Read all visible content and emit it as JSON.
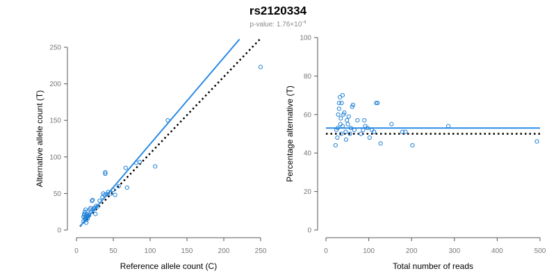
{
  "header": {
    "title": "rs2120334",
    "pvalue_prefix": "p-value: 1.76×10",
    "pvalue_exponent": "-4"
  },
  "colors": {
    "points": "#1f7fd6",
    "fit_line": "#2a8be6",
    "reference_line": "#000000",
    "axis": "#555555",
    "tick_text": "#777777"
  },
  "chart_data": [
    {
      "type": "scatter",
      "title": "",
      "xlabel": "Reference allele count (C)",
      "ylabel": "Alternative allele count (T)",
      "xlim": [
        0,
        262
      ],
      "ylim": [
        0,
        250
      ],
      "xticks": [
        0,
        50,
        100,
        150,
        200,
        250
      ],
      "yticks": [
        0,
        50,
        100,
        150,
        200,
        250
      ],
      "fit_line": {
        "x": [
          5,
          232
        ],
        "y": [
          5,
          261
        ]
      },
      "reference_line": {
        "x": [
          5,
          262
        ],
        "y": [
          5,
          262
        ],
        "style": "dotted"
      },
      "points": [
        [
          10,
          12
        ],
        [
          10,
          18
        ],
        [
          11,
          20
        ],
        [
          11,
          22
        ],
        [
          12,
          15
        ],
        [
          12,
          25
        ],
        [
          13,
          17
        ],
        [
          13,
          28
        ],
        [
          14,
          10
        ],
        [
          14,
          20
        ],
        [
          14,
          14
        ],
        [
          15,
          18
        ],
        [
          15,
          22
        ],
        [
          16,
          20
        ],
        [
          16,
          16
        ],
        [
          17,
          19
        ],
        [
          18,
          21
        ],
        [
          19,
          28
        ],
        [
          20,
          30
        ],
        [
          21,
          25
        ],
        [
          22,
          40
        ],
        [
          23,
          41
        ],
        [
          24,
          28
        ],
        [
          25,
          30
        ],
        [
          26,
          30
        ],
        [
          27,
          22
        ],
        [
          28,
          33
        ],
        [
          30,
          32
        ],
        [
          33,
          40
        ],
        [
          37,
          45
        ],
        [
          38,
          50
        ],
        [
          40,
          48
        ],
        [
          41,
          79
        ],
        [
          41,
          77
        ],
        [
          43,
          49
        ],
        [
          45,
          52
        ],
        [
          49,
          50
        ],
        [
          52,
          55
        ],
        [
          55,
          48
        ],
        [
          60,
          60
        ],
        [
          70,
          85
        ],
        [
          72,
          58
        ],
        [
          85,
          92
        ],
        [
          90,
          93
        ],
        [
          112,
          87
        ],
        [
          130,
          150
        ],
        [
          262,
          223
        ]
      ]
    },
    {
      "type": "scatter",
      "title": "",
      "xlabel": "Total number of reads",
      "ylabel": "Percentage alternative (T)",
      "xlim": [
        0,
        490
      ],
      "ylim": [
        0,
        100
      ],
      "xticks": [
        0,
        100,
        200,
        300,
        400,
        500
      ],
      "yticks": [
        0,
        20,
        40,
        60,
        80,
        100
      ],
      "fit_line": {
        "x": [
          0,
          490
        ],
        "y": [
          53,
          53
        ]
      },
      "reference_line": {
        "x": [
          0,
          490
        ],
        "y": [
          50,
          50
        ],
        "style": "dotted"
      },
      "points": [
        [
          22,
          44
        ],
        [
          24,
          52
        ],
        [
          26,
          48
        ],
        [
          27,
          53
        ],
        [
          28,
          60
        ],
        [
          30,
          63
        ],
        [
          30,
          66
        ],
        [
          32,
          69
        ],
        [
          33,
          55
        ],
        [
          34,
          58
        ],
        [
          35,
          50
        ],
        [
          36,
          66
        ],
        [
          38,
          70
        ],
        [
          38,
          54
        ],
        [
          40,
          60
        ],
        [
          42,
          61
        ],
        [
          45,
          51
        ],
        [
          46,
          47
        ],
        [
          48,
          57
        ],
        [
          50,
          55
        ],
        [
          52,
          59
        ],
        [
          55,
          50
        ],
        [
          57,
          53
        ],
        [
          60,
          64
        ],
        [
          62,
          65
        ],
        [
          65,
          52
        ],
        [
          72,
          57
        ],
        [
          80,
          50
        ],
        [
          85,
          52
        ],
        [
          88,
          57
        ],
        [
          90,
          54
        ],
        [
          95,
          53
        ],
        [
          100,
          48
        ],
        [
          105,
          52
        ],
        [
          110,
          51
        ],
        [
          115,
          66
        ],
        [
          118,
          66
        ],
        [
          125,
          45
        ],
        [
          150,
          55
        ],
        [
          175,
          51
        ],
        [
          182,
          51
        ],
        [
          198,
          44
        ],
        [
          280,
          54
        ],
        [
          483,
          46
        ]
      ]
    }
  ]
}
